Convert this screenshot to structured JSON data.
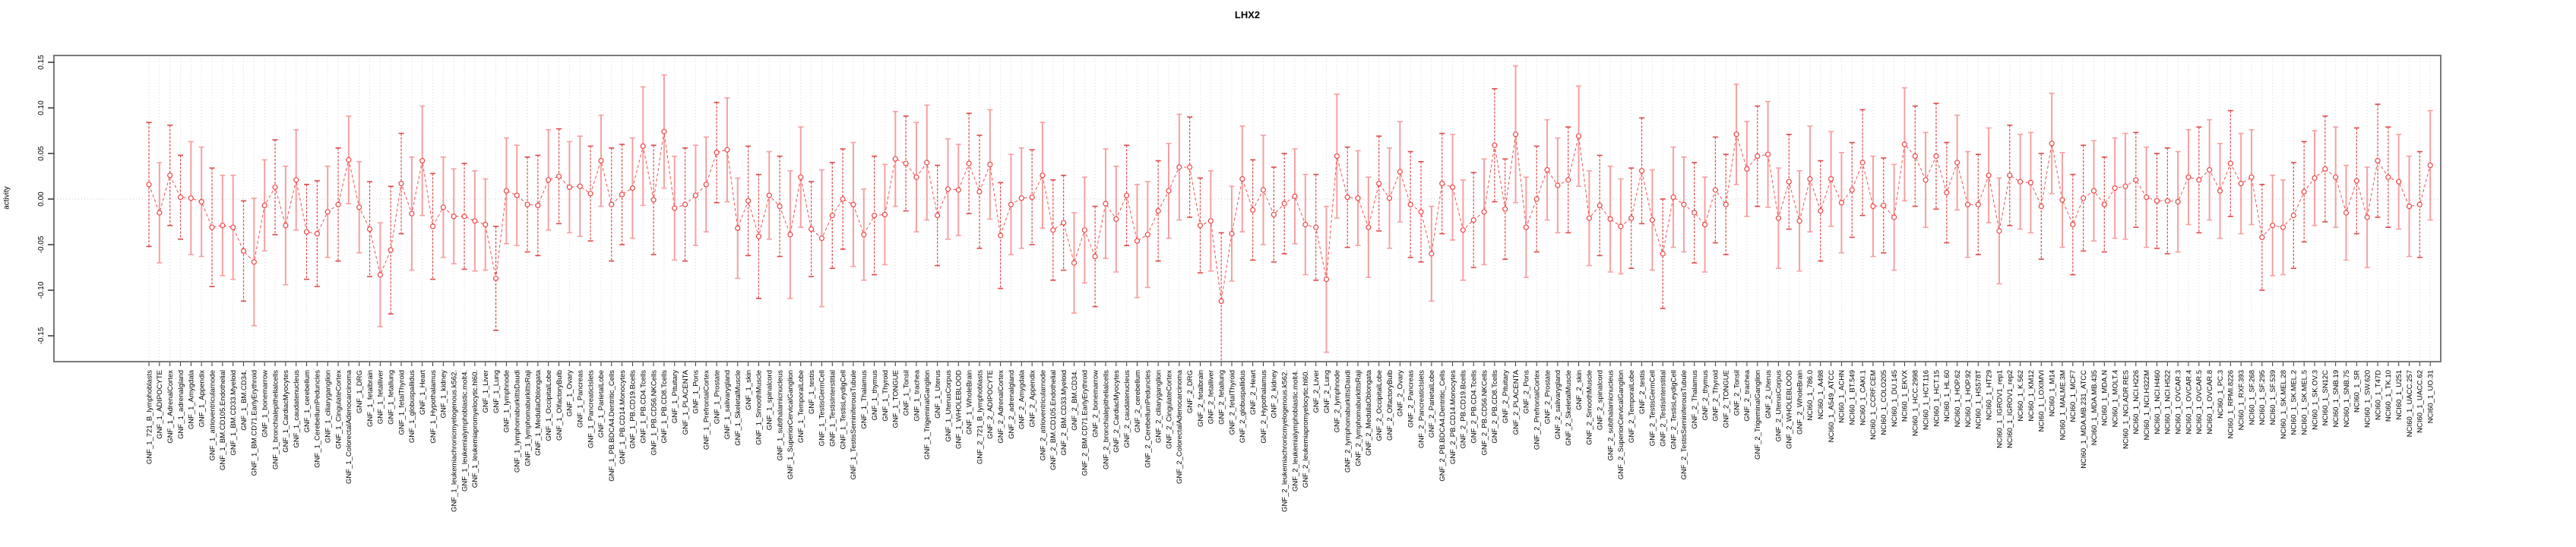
{
  "title": "LHX2",
  "ylabel": "activity",
  "colors": {
    "marker": "#ef4444",
    "line": "#ef5350",
    "errorbar_light": "#f6a0a0",
    "errorbar_dashed": "#e04848",
    "grid": "#d8d8d8",
    "zero_line": "#c9c9c9",
    "box_border": "#7a7a7a",
    "tick": "#333333",
    "label_text": "#000000"
  },
  "chart_data": {
    "type": "line",
    "title": "LHX2",
    "xlabel": "",
    "ylabel": "activity",
    "ylim": [
      -0.157,
      0.157
    ],
    "grid": "vertical dotted gridline per category, horizontal dotted line at 0 only",
    "legend_position": "none",
    "marker": "open-circle",
    "error_bars": true,
    "y_ticks": [
      {
        "label": "0.15",
        "value": 0.15
      },
      {
        "label": "0.10",
        "value": 0.1
      },
      {
        "label": "0.05",
        "value": 0.05
      },
      {
        "label": "0.00",
        "value": 0.0
      },
      {
        "label": "-0.05",
        "value": -0.05
      },
      {
        "label": "-0.10",
        "value": -0.1
      },
      {
        "label": "-0.15",
        "value": -0.15
      }
    ],
    "categories": [
      "GNF_1_721_B_lymphoblasts",
      "GNF_1_ADIPOCYTE",
      "GNF_1_AdrenalCortex",
      "GNF_1_adrenalgland",
      "GNF_1_Amygdala",
      "GNF_1_Appendix",
      "GNF_1_atrioventricularnode",
      "GNF_1_BM.CD105.Endothelial",
      "GNF_1_BM.CD33.Myeloid",
      "GNF_1_BM.CD34.",
      "GNF_1_BM.CD71.EarlyErythroid",
      "GNF_1_bonemarrow",
      "GNF_1_bronchialepithelialcells",
      "GNF_1_CardiacMyocytes",
      "GNF_1_caudatenucleus",
      "GNF_1_cerebellum",
      "GNF_1_CerebellumPeduncles",
      "GNF_1_ciliaryganglion",
      "GNF_1_CingulateCortex",
      "GNF_1_ColorectalAdenocarcinoma",
      "GNF_1_DRG",
      "GNF_1_fetalbrain",
      "GNF_1_fetalliver",
      "GNF_1_fetallung",
      "GNF_1_fetalThyroid",
      "GNF_1_globuspallidus",
      "GNF_1_Heart",
      "GNF_1_Hypothalamus",
      "GNF_1_kidney",
      "GNF_1_leukemiachronicmyelogenous.k562.",
      "GNF_1_leukemialymphoblastic.molt4.",
      "GNF_1_leukemiapromyelocytic.hl60.",
      "GNF_1_Liver",
      "GNF_1_Lung",
      "GNF_1_lymphnode",
      "GNF_1_lymphomaburkittsDaudi",
      "GNF_1_lymphomaburkittsRaji",
      "GNF_1_MedullaOblongata",
      "GNF_1_OccipitalLobe",
      "GNF_1_OlfactoryBulb",
      "GNF_1_Ovary",
      "GNF_1_Pancreas",
      "GNF_1_PancreaticIslets",
      "GNF_1_ParietalLobe",
      "GNF_1_PB.BDCA4.Dentritic_Cells",
      "GNF_1_PB.CD14.Monocytes",
      "GNF_1_PB.CD19.Bcells",
      "GNF_1_PB.CD4.Tcells",
      "GNF_1_PB.CD56.NKCells",
      "GNF_1_PB.CD8.Tcells",
      "GNF_1_Pituitary",
      "GNF_1_PLACENTA",
      "GNF_1_Pons",
      "GNF_1_PrefrontalCortex",
      "GNF_1_Prostate",
      "GNF_1_salivarygland",
      "GNF_1_SkeletalMuscle",
      "GNF_1_skin",
      "GNF_1_SmoothMuscle",
      "GNF_1_spinalcord",
      "GNF_1_subthalamicnucleus",
      "GNF_1_SuperiorCervicalGanglion",
      "GNF_1_TemporalLobe",
      "GNF_1_testis",
      "GNF_1_TestisGermCell",
      "GNF_1_TestisInterstitial",
      "GNF_1_TestisLeydigCell",
      "GNF_1_TestisSeminiferousTubule",
      "GNF_1_Thalamus",
      "GNF_1_thymus",
      "GNF_1_Thyroid",
      "GNF_1_TONGUE",
      "GNF_1_Tonsil",
      "GNF_1_trachea",
      "GNF_1_TrigeminalGanglion",
      "GNF_1_Uterus",
      "GNF_1_UterusCorpus",
      "GNF_1_WHOLEBLOOD",
      "GNF_1_WholeBrain",
      "GNF_2_721_B_lymphoblasts",
      "GNF_2_ADIPOCYTE",
      "GNF_2_AdrenalCortex",
      "GNF_2_adrenalgland",
      "GNF_2_Amygdala",
      "GNF_2_Appendix",
      "GNF_2_atrioventricularnode",
      "GNF_2_BM.CD105.Endothelial",
      "GNF_2_BM.CD33.Myeloid",
      "GNF_2_BM.CD34.",
      "GNF_2_BM.CD71.EarlyErythroid",
      "GNF_2_bonemarrow",
      "GNF_2_bronchialepithelialcells",
      "GNF_2_CardiacMyocytes",
      "GNF_2_caudatenucleus",
      "GNF_2_cerebellum",
      "GNF_2_CerebellumPeduncles",
      "GNF_2_ciliaryganglion",
      "GNF_2_CingulateCortex",
      "GNF_2_ColorectalAdenocarcinoma",
      "GNF_2_DRG",
      "GNF_2_fetalbrain",
      "GNF_2_fetalliver",
      "GNF_2_fetallung",
      "GNF_2_fetalThyroid",
      "GNF_2_globuspallidus",
      "GNF_2_Heart",
      "GNF_2_Hypothalamus",
      "GNF_2_kidney",
      "GNF_2_leukemiachronicmyelogenous.k562.",
      "GNF_2_leukemialymphoblastic.molt4.",
      "GNF_2_leukemiapromyelocytic.hl60.",
      "GNF_2_Liver",
      "GNF_2_Lung",
      "GNF_2_lymphnode",
      "GNF_2_lymphomaburkittsDaudi",
      "GNF_2_lymphomaburkittsRaji",
      "GNF_2_MedullaOblongata",
      "GNF_2_OccipitalLobe",
      "GNF_2_OlfactoryBulb",
      "GNF_2_Ovary",
      "GNF_2_Pancreas",
      "GNF_2_PancreaticIslets",
      "GNF_2_ParietalLobe",
      "GNF_2_PB.BDCA4.Dentritic_Cells",
      "GNF_2_PB.CD14.Monocytes",
      "GNF_2_PB.CD19.Bcells",
      "GNF_2_PB.CD4.Tcells",
      "GNF_2_PB.CD56.NKCells",
      "GNF_2_PB.CD8.Tcells",
      "GNF_2_Pituitary",
      "GNF_2_PLACENTA",
      "GNF_2_Pons",
      "GNF_2_PrefrontalCortex",
      "GNF_2_Prostate",
      "GNF_2_salivarygland",
      "GNF_2_SkeletalMuscle",
      "GNF_2_skin",
      "GNF_2_SmoothMuscle",
      "GNF_2_spinalcord",
      "GNF_2_subthalamicnucleus",
      "GNF_2_SuperiorCervicalGanglion",
      "GNF_2_TemporalLobe",
      "GNF_2_testis",
      "GNF_2_TestisGermCell",
      "GNF_2_TestisInterstitial",
      "GNF_2_TestisLeydigCell",
      "GNF_2_TestisSeminiferousTubule",
      "GNF_2_Thalamus",
      "GNF_2_thymus",
      "GNF_2_Thyroid",
      "GNF_2_TONGUE",
      "GNF_2_Tonsil",
      "GNF_2_trachea",
      "GNF_2_TrigeminalGanglion",
      "GNF_2_Uterus",
      "GNF_2_UterusCorpus",
      "GNF_2_WHOLEBLOOD",
      "GNF_2_WholeBrain",
      "NCI60_1_786.0",
      "NCI60_1_A498",
      "NCI60_1_A549_ATCC",
      "NCI60_1_ACHN",
      "NCI60_1_BT.549",
      "NCI60_1_CAKI.1",
      "NCI60_1_CCRF.CEM",
      "NCI60_1_COLO205",
      "NCI60_1_DU.145",
      "NCI60_1_EKVX",
      "NCI60_1_HCC.2998",
      "NCI60_1_HCT.116",
      "NCI60_1_HCT.15",
      "NCI60_1_HL.60",
      "NCI60_1_HOP.62",
      "NCI60_1_HOP.92",
      "NCI60_1_HS578T",
      "NCI60_1_HT29",
      "NCI60_1_IGROV1_rep1",
      "NCI60_1_IGROV1_rep2",
      "NCI60_1_K.562",
      "NCI60_1_KM12",
      "NCI60_1_LOXIMVI",
      "NCI60_1_M14",
      "NCI60_1_MALME.3M",
      "NCI60_1_MCF7",
      "NCI60_1_MDA.MB.231_ATCC",
      "NCI60_1_MDA.MB.435",
      "NCI60_1_MDA.N",
      "NCI60_1_MOLT.4",
      "NCI60_1_NCI.ADR.RES",
      "NCI60_1_NCI.H226",
      "NCI60_1_NCI.H322M",
      "NCI60_1_NCI.H460",
      "NCI60_1_NCI.H522",
      "NCI60_1_OVCAR.3",
      "NCI60_1_OVCAR.4",
      "NCI60_1_OVCAR.5",
      "NCI60_1_OVCAR.8",
      "NCI60_1_PC.3",
      "NCI60_1_RPMI.8226",
      "NCI60_1_RXF.393",
      "NCI60_1_SF.268",
      "NCI60_1_SF.295",
      "NCI60_1_SF.539",
      "NCI60_1_SK.MEL.28",
      "NCI60_1_SK.MEL.2",
      "NCI60_1_SK.MEL.5",
      "NCI60_1_SK.OV.3",
      "NCI60_1_SN12C",
      "NCI60_1_SNB.19",
      "NCI60_1_SNB.75",
      "NCI60_1_SR",
      "NCI60_1_SW.620",
      "NCI60_1_T47D",
      "NCI60_1_TK.10",
      "NCI60_1_U251",
      "NCI60_1_UACC.257",
      "NCI60_1_UACC.62",
      "NCI60_1_UO.31"
    ],
    "series": [
      {
        "name": "activity",
        "values": [
          0.016,
          -0.015,
          0.026,
          0.002,
          0.001,
          -0.003,
          -0.031,
          -0.029,
          -0.031,
          -0.057,
          -0.069,
          -0.007,
          0.013,
          -0.029,
          0.021,
          -0.036,
          -0.038,
          -0.014,
          -0.006,
          0.043,
          -0.009,
          -0.033,
          -0.083,
          -0.056,
          0.017,
          -0.016,
          0.042,
          -0.03,
          -0.009,
          -0.019,
          -0.019,
          -0.024,
          -0.028,
          -0.087,
          0.009,
          0.004,
          -0.006,
          -0.007,
          0.021,
          0.025,
          0.013,
          0.014,
          0.006,
          0.042,
          -0.006,
          0.005,
          0.012,
          0.058,
          -0.001,
          0.074,
          -0.01,
          -0.006,
          0.004,
          0.016,
          0.051,
          0.054,
          -0.032,
          -0.002,
          -0.041,
          0.004,
          -0.008,
          -0.039,
          0.024,
          -0.033,
          -0.043,
          -0.018,
          0.0,
          -0.006,
          -0.039,
          -0.018,
          -0.017,
          0.044,
          0.039,
          0.024,
          0.04,
          -0.018,
          0.011,
          0.01,
          0.039,
          0.008,
          0.038,
          -0.04,
          -0.006,
          0.001,
          0.002,
          0.026,
          -0.034,
          -0.026,
          -0.07,
          -0.034,
          -0.063,
          -0.005,
          -0.022,
          0.004,
          -0.046,
          -0.039,
          -0.013,
          0.009,
          0.035,
          0.035,
          -0.029,
          -0.024,
          -0.112,
          -0.038,
          0.022,
          -0.012,
          0.01,
          -0.017,
          -0.005,
          0.003,
          -0.028,
          -0.031,
          -0.088,
          0.047,
          0.002,
          0.001,
          -0.031,
          0.017,
          0.001,
          0.03,
          -0.006,
          -0.014,
          -0.06,
          0.017,
          0.013,
          -0.034,
          -0.023,
          -0.014,
          0.059,
          -0.011,
          0.071,
          -0.031,
          0.0,
          0.032,
          0.015,
          0.021,
          0.069,
          -0.021,
          -0.007,
          -0.022,
          -0.03,
          -0.021,
          0.031,
          -0.023,
          -0.06,
          0.002,
          -0.006,
          -0.015,
          -0.028,
          0.01,
          -0.006,
          0.071,
          0.033,
          0.047,
          0.049,
          -0.021,
          0.019,
          -0.024,
          0.022,
          -0.013,
          0.022,
          -0.004,
          0.01,
          0.04,
          -0.008,
          -0.007,
          -0.02,
          0.06,
          0.047,
          0.021,
          0.047,
          0.007,
          0.04,
          -0.006,
          -0.006,
          0.026,
          -0.035,
          0.026,
          0.019,
          0.018,
          -0.008,
          0.061,
          -0.001,
          -0.028,
          0.001,
          0.009,
          -0.006,
          0.012,
          0.014,
          0.021,
          0.002,
          -0.002,
          -0.002,
          -0.003,
          0.024,
          0.021,
          0.032,
          0.009,
          0.039,
          0.017,
          0.024,
          -0.042,
          -0.029,
          -0.031,
          -0.018,
          0.008,
          0.023,
          0.033,
          0.024,
          -0.015,
          0.02,
          -0.02,
          0.042,
          0.024,
          0.019,
          -0.008,
          -0.006,
          0.037
        ],
        "errors": [
          0.068,
          0.055,
          0.055,
          0.046,
          0.062,
          0.06,
          0.065,
          0.055,
          0.057,
          0.055,
          0.07,
          0.05,
          0.052,
          0.065,
          0.055,
          0.052,
          0.058,
          0.05,
          0.062,
          0.048,
          0.05,
          0.052,
          0.057,
          0.07,
          0.055,
          0.062,
          0.06,
          0.058,
          0.055,
          0.052,
          0.058,
          0.055,
          0.05,
          0.057,
          0.058,
          0.055,
          0.052,
          0.055,
          0.055,
          0.052,
          0.05,
          0.055,
          0.052,
          0.05,
          0.062,
          0.055,
          0.055,
          0.065,
          0.06,
          0.062,
          0.057,
          0.062,
          0.055,
          0.052,
          0.055,
          0.057,
          0.055,
          0.06,
          0.068,
          0.048,
          0.055,
          0.07,
          0.055,
          0.052,
          0.075,
          0.058,
          0.055,
          0.068,
          0.05,
          0.065,
          0.055,
          0.052,
          0.052,
          0.06,
          0.063,
          0.055,
          0.055,
          0.05,
          0.055,
          0.062,
          0.06,
          0.058,
          0.055,
          0.055,
          0.052,
          0.058,
          0.055,
          0.052,
          0.055,
          0.058,
          0.055,
          0.06,
          0.058,
          0.055,
          0.062,
          0.058,
          0.055,
          0.052,
          0.058,
          0.055,
          0.052,
          0.055,
          0.075,
          0.052,
          0.058,
          0.055,
          0.06,
          0.052,
          0.055,
          0.052,
          0.055,
          0.058,
          0.08,
          0.068,
          0.055,
          0.052,
          0.055,
          0.052,
          0.055,
          0.055,
          0.058,
          0.055,
          0.052,
          0.055,
          0.058,
          0.055,
          0.052,
          0.058,
          0.062,
          0.055,
          0.075,
          0.055,
          0.058,
          0.055,
          0.052,
          0.058,
          0.055,
          0.052,
          0.055,
          0.058,
          0.052,
          0.055,
          0.058,
          0.055,
          0.06,
          0.055,
          0.052,
          0.055,
          0.052,
          0.058,
          0.055,
          0.055,
          0.052,
          0.055,
          0.058,
          0.055,
          0.052,
          0.055,
          0.058,
          0.055,
          0.052,
          0.055,
          0.052,
          0.058,
          0.055,
          0.052,
          0.058,
          0.062,
          0.055,
          0.052,
          0.058,
          0.055,
          0.052,
          0.058,
          0.055,
          0.052,
          0.058,
          0.055,
          0.052,
          0.055,
          0.058,
          0.055,
          0.052,
          0.055,
          0.058,
          0.055,
          0.052,
          0.055,
          0.058,
          0.052,
          0.055,
          0.052,
          0.058,
          0.055,
          0.052,
          0.058,
          0.055,
          0.052,
          0.058,
          0.055,
          0.052,
          0.058,
          0.055,
          0.052,
          0.058,
          0.055,
          0.052,
          0.058,
          0.055,
          0.052,
          0.058,
          0.055,
          0.062,
          0.055,
          0.052,
          0.055,
          0.058,
          0.06
        ]
      }
    ]
  }
}
